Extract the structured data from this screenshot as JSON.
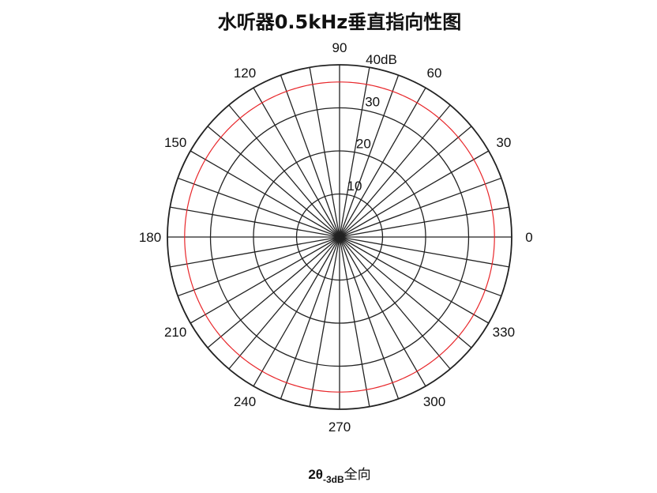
{
  "chart_data": {
    "type": "polar",
    "title": "水听器0.5kHz垂直指向性图",
    "r_range": [
      0,
      40
    ],
    "r_ticks": [
      10,
      20,
      30,
      40
    ],
    "r_tick_labels": [
      "10",
      "20",
      "30",
      "40dB"
    ],
    "angle_ticks_deg": [
      0,
      30,
      60,
      90,
      120,
      150,
      180,
      210,
      240,
      270,
      300,
      330
    ],
    "angle_tick_labels": [
      "0",
      "30",
      "60",
      "90",
      "120",
      "150",
      "180",
      "210",
      "240",
      "270",
      "300",
      "330"
    ],
    "grid": true,
    "spoke_step_deg": 10,
    "series": [
      {
        "color": "#e8262a",
        "theta_deg": [
          0,
          30,
          60,
          90,
          120,
          150,
          180,
          210,
          240,
          270,
          300,
          330,
          360
        ],
        "r": [
          36,
          36,
          36,
          36,
          36,
          36,
          36,
          36,
          36,
          36,
          36,
          36,
          36
        ]
      }
    ],
    "caption": {
      "prefix": "2θ",
      "subscript": "-3dB",
      "suffix": "全向"
    }
  }
}
